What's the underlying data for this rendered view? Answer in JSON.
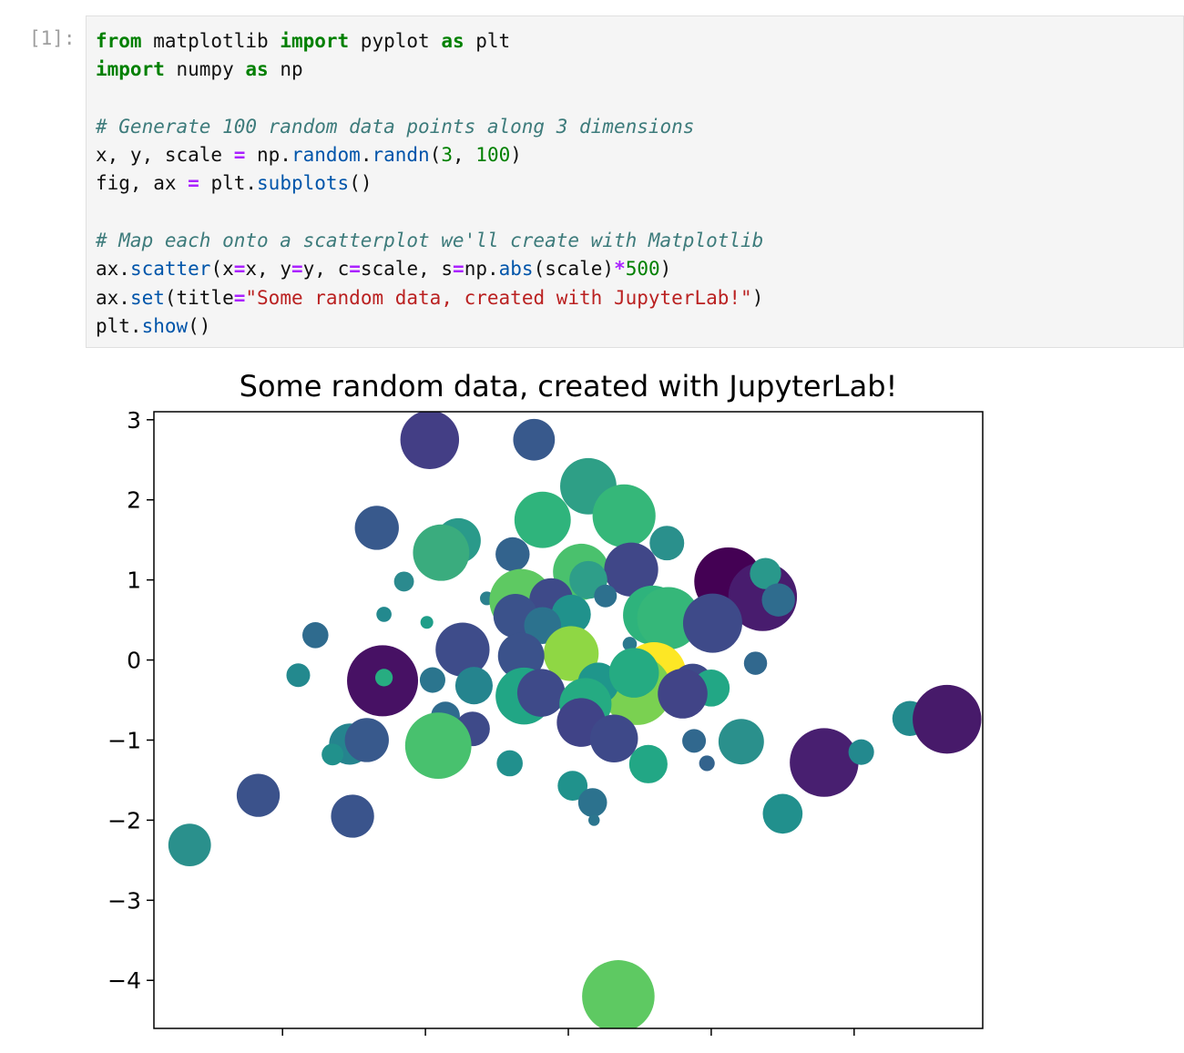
{
  "cell": {
    "prompt": "[1]:",
    "lines": [
      [
        {
          "t": "from",
          "c": "kw"
        },
        {
          "t": " matplotlib "
        },
        {
          "t": "import",
          "c": "kw"
        },
        {
          "t": " pyplot "
        },
        {
          "t": "as",
          "c": "kw"
        },
        {
          "t": " plt"
        }
      ],
      [
        {
          "t": "import",
          "c": "kw"
        },
        {
          "t": " numpy "
        },
        {
          "t": "as",
          "c": "kw"
        },
        {
          "t": " np"
        }
      ],
      [],
      [
        {
          "t": "# Generate 100 random data points along 3 dimensions",
          "c": "cm"
        }
      ],
      [
        {
          "t": "x, y, scale "
        },
        {
          "t": "=",
          "c": "op"
        },
        {
          "t": " np."
        },
        {
          "t": "random",
          "c": "fn"
        },
        {
          "t": "."
        },
        {
          "t": "randn",
          "c": "fn"
        },
        {
          "t": "("
        },
        {
          "t": "3",
          "c": "nm"
        },
        {
          "t": ", "
        },
        {
          "t": "100",
          "c": "nm"
        },
        {
          "t": ")"
        }
      ],
      [
        {
          "t": "fig, ax "
        },
        {
          "t": "=",
          "c": "op"
        },
        {
          "t": " plt."
        },
        {
          "t": "subplots",
          "c": "fn"
        },
        {
          "t": "()"
        }
      ],
      [],
      [
        {
          "t": "# Map each onto a scatterplot we'll create with Matplotlib",
          "c": "cm"
        }
      ],
      [
        {
          "t": "ax."
        },
        {
          "t": "scatter",
          "c": "fn"
        },
        {
          "t": "(x"
        },
        {
          "t": "=",
          "c": "op"
        },
        {
          "t": "x, y"
        },
        {
          "t": "=",
          "c": "op"
        },
        {
          "t": "y, c"
        },
        {
          "t": "=",
          "c": "op"
        },
        {
          "t": "scale, s"
        },
        {
          "t": "=",
          "c": "op"
        },
        {
          "t": "np."
        },
        {
          "t": "abs",
          "c": "fn"
        },
        {
          "t": "(scale)"
        },
        {
          "t": "*",
          "c": "op"
        },
        {
          "t": "500",
          "c": "nm"
        },
        {
          "t": ")"
        }
      ],
      [
        {
          "t": "ax."
        },
        {
          "t": "set",
          "c": "fn"
        },
        {
          "t": "(title"
        },
        {
          "t": "=",
          "c": "op"
        },
        {
          "t": "\"Some random data, created with JupyterLab!\"",
          "c": "st"
        },
        {
          "t": ")"
        }
      ],
      [
        {
          "t": "plt."
        },
        {
          "t": "show",
          "c": "fn"
        },
        {
          "t": "()"
        }
      ]
    ]
  },
  "chart_data": {
    "type": "scatter",
    "title": "Some random data, created with JupyterLab!",
    "xlabel": "",
    "ylabel": "",
    "xlim": [
      -2.9,
      2.9
    ],
    "ylim": [
      -4.6,
      3.1
    ],
    "yticks": [
      3,
      2,
      1,
      0,
      -1,
      -2,
      -3,
      -4
    ],
    "ytick_labels": [
      "3",
      "2",
      "1",
      "0",
      "−1",
      "−2",
      "−3",
      "−4"
    ],
    "xticks": [
      -2,
      -1,
      0,
      1,
      2
    ],
    "grid": false,
    "colormap": "viridis",
    "points": [
      {
        "x": -0.97,
        "y": 2.75,
        "size": 1.24,
        "color": "#433e85"
      },
      {
        "x": -0.24,
        "y": 2.75,
        "size": 0.88,
        "color": "#38598c"
      },
      {
        "x": 0.14,
        "y": 2.17,
        "size": 1.19,
        "color": "#2e9f86"
      },
      {
        "x": 0.39,
        "y": 1.8,
        "size": 1.33,
        "color": "#35b779"
      },
      {
        "x": -0.18,
        "y": 1.75,
        "size": 1.19,
        "color": "#2fb47c"
      },
      {
        "x": -1.34,
        "y": 1.65,
        "size": 0.93,
        "color": "#38598c"
      },
      {
        "x": -0.77,
        "y": 1.49,
        "size": 0.95,
        "color": "#2a9a8a"
      },
      {
        "x": -0.89,
        "y": 1.34,
        "size": 1.19,
        "color": "#3aac7e"
      },
      {
        "x": 0.69,
        "y": 1.46,
        "size": 0.73,
        "color": "#2a908c"
      },
      {
        "x": -0.39,
        "y": 1.32,
        "size": 0.72,
        "color": "#33638d"
      },
      {
        "x": 0.09,
        "y": 1.1,
        "size": 1.19,
        "color": "#4ac16d"
      },
      {
        "x": 0.44,
        "y": 1.13,
        "size": 1.14,
        "color": "#404788"
      },
      {
        "x": 0.14,
        "y": 1.0,
        "size": 0.8,
        "color": "#2e9e89"
      },
      {
        "x": 1.12,
        "y": 0.98,
        "size": 1.44,
        "color": "#440154"
      },
      {
        "x": 1.36,
        "y": 0.79,
        "size": 1.45,
        "color": "#481c6e"
      },
      {
        "x": 1.38,
        "y": 1.08,
        "size": 0.66,
        "color": "#29988b"
      },
      {
        "x": 1.47,
        "y": 0.75,
        "size": 0.7,
        "color": "#2f6c8e"
      },
      {
        "x": -1.15,
        "y": 0.98,
        "size": 0.42,
        "color": "#2b8a8e"
      },
      {
        "x": 0.26,
        "y": 0.8,
        "size": 0.48,
        "color": "#2d708e"
      },
      {
        "x": -0.41,
        "y": 0.82,
        "size": 0.6,
        "color": "#1f9f88"
      },
      {
        "x": -0.57,
        "y": 0.77,
        "size": 0.29,
        "color": "#2c818e"
      },
      {
        "x": -0.33,
        "y": 0.74,
        "size": 1.34,
        "color": "#5ec962"
      },
      {
        "x": -0.12,
        "y": 0.75,
        "size": 0.92,
        "color": "#3e4a89"
      },
      {
        "x": 0.59,
        "y": 0.56,
        "size": 1.25,
        "color": "#2eb37c"
      },
      {
        "x": 0.7,
        "y": 0.52,
        "size": 1.32,
        "color": "#35b779"
      },
      {
        "x": 0.02,
        "y": 0.57,
        "size": 0.83,
        "color": "#20928c"
      },
      {
        "x": -0.37,
        "y": 0.55,
        "size": 0.93,
        "color": "#3b528b"
      },
      {
        "x": -0.18,
        "y": 0.43,
        "size": 0.78,
        "color": "#2c728e"
      },
      {
        "x": 1.01,
        "y": 0.46,
        "size": 1.25,
        "color": "#3e4a89"
      },
      {
        "x": -1.29,
        "y": 0.57,
        "size": 0.32,
        "color": "#23898e"
      },
      {
        "x": -0.99,
        "y": 0.47,
        "size": 0.27,
        "color": "#1f9e89"
      },
      {
        "x": -1.77,
        "y": 0.31,
        "size": 0.55,
        "color": "#2f6b8e"
      },
      {
        "x": -0.74,
        "y": 0.13,
        "size": 1.14,
        "color": "#3e4c8a"
      },
      {
        "x": 0.43,
        "y": 0.2,
        "size": 0.3,
        "color": "#2a788e"
      },
      {
        "x": 0.02,
        "y": 0.08,
        "size": 1.16,
        "color": "#8fd744"
      },
      {
        "x": -0.33,
        "y": 0.05,
        "size": 0.98,
        "color": "#3b528b"
      },
      {
        "x": 1.31,
        "y": -0.04,
        "size": 0.49,
        "color": "#31688e"
      },
      {
        "x": 0.6,
        "y": -0.18,
        "size": 1.36,
        "color": "#fde725"
      },
      {
        "x": 0.48,
        "y": -0.38,
        "size": 1.46,
        "color": "#7ad151"
      },
      {
        "x": -1.3,
        "y": -0.26,
        "size": 1.5,
        "color": "#471164"
      },
      {
        "x": -1.29,
        "y": -0.22,
        "size": 0.37,
        "color": "#27ad81"
      },
      {
        "x": -0.95,
        "y": -0.25,
        "size": 0.54,
        "color": "#2b758e"
      },
      {
        "x": -0.66,
        "y": -0.32,
        "size": 0.79,
        "color": "#25848e"
      },
      {
        "x": -1.89,
        "y": -0.19,
        "size": 0.5,
        "color": "#23898e"
      },
      {
        "x": 0.21,
        "y": -0.29,
        "size": 0.87,
        "color": "#1f968b"
      },
      {
        "x": 0.46,
        "y": -0.16,
        "size": 1.05,
        "color": "#25ab82"
      },
      {
        "x": 0.87,
        "y": -0.3,
        "size": 0.86,
        "color": "#3e4a89"
      },
      {
        "x": 1.0,
        "y": -0.35,
        "size": 0.78,
        "color": "#22a785"
      },
      {
        "x": 0.8,
        "y": -0.42,
        "size": 1.05,
        "color": "#414487"
      },
      {
        "x": -0.31,
        "y": -0.45,
        "size": 1.2,
        "color": "#21a685"
      },
      {
        "x": -0.19,
        "y": -0.41,
        "size": 1.01,
        "color": "#3e4a89"
      },
      {
        "x": 0.12,
        "y": -0.55,
        "size": 1.1,
        "color": "#25ab82"
      },
      {
        "x": 0.09,
        "y": -0.78,
        "size": 1.03,
        "color": "#404387"
      },
      {
        "x": 0.32,
        "y": -0.98,
        "size": 1.01,
        "color": "#3e4989"
      },
      {
        "x": 0.56,
        "y": -1.3,
        "size": 0.81,
        "color": "#22a785"
      },
      {
        "x": 1.21,
        "y": -1.02,
        "size": 0.96,
        "color": "#2a908c"
      },
      {
        "x": 0.88,
        "y": -1.01,
        "size": 0.5,
        "color": "#31688e"
      },
      {
        "x": 0.97,
        "y": -1.29,
        "size": 0.33,
        "color": "#33638d"
      },
      {
        "x": 1.79,
        "y": -1.28,
        "size": 1.45,
        "color": "#481f70"
      },
      {
        "x": 2.05,
        "y": -1.15,
        "size": 0.54,
        "color": "#23898e"
      },
      {
        "x": 2.39,
        "y": -0.73,
        "size": 0.74,
        "color": "#238a8d"
      },
      {
        "x": 2.65,
        "y": -0.74,
        "size": 1.45,
        "color": "#471a6a"
      },
      {
        "x": -0.86,
        "y": -0.7,
        "size": 0.61,
        "color": "#2f6b8e"
      },
      {
        "x": -0.67,
        "y": -0.86,
        "size": 0.73,
        "color": "#3e4a89"
      },
      {
        "x": -0.91,
        "y": -1.07,
        "size": 1.4,
        "color": "#48c16e"
      },
      {
        "x": -1.53,
        "y": -1.05,
        "size": 0.87,
        "color": "#25848e"
      },
      {
        "x": -1.41,
        "y": -1.0,
        "size": 0.93,
        "color": "#38598c"
      },
      {
        "x": -1.65,
        "y": -1.18,
        "size": 0.46,
        "color": "#21918c"
      },
      {
        "x": -0.41,
        "y": -1.29,
        "size": 0.55,
        "color": "#21908d"
      },
      {
        "x": 0.03,
        "y": -1.57,
        "size": 0.63,
        "color": "#20928c"
      },
      {
        "x": 0.17,
        "y": -1.78,
        "size": 0.61,
        "color": "#2c728e"
      },
      {
        "x": 0.18,
        "y": -2.0,
        "size": 0.24,
        "color": "#2b758e"
      },
      {
        "x": -2.17,
        "y": -1.69,
        "size": 0.91,
        "color": "#3b528b"
      },
      {
        "x": -1.51,
        "y": -1.95,
        "size": 0.91,
        "color": "#3a548c"
      },
      {
        "x": 1.5,
        "y": -1.92,
        "size": 0.84,
        "color": "#21908d"
      },
      {
        "x": -2.65,
        "y": -2.31,
        "size": 0.9,
        "color": "#2a908c"
      },
      {
        "x": 0.35,
        "y": -4.2,
        "size": 1.53,
        "color": "#5ec962"
      }
    ]
  }
}
